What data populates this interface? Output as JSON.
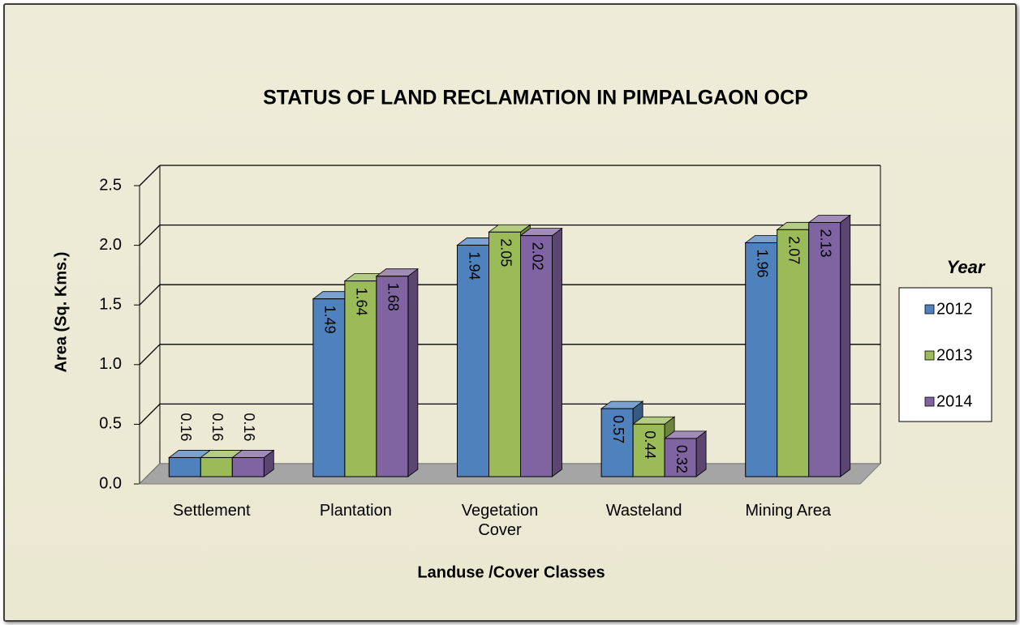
{
  "chart_data": {
    "type": "bar3d",
    "title": "STATUS OF LAND RECLAMATION IN PIMPALGAON OCP",
    "x_label": "Landuse /Cover Classes",
    "y_label": "Area (Sq. Kms.)",
    "categories": [
      "Settlement",
      "Plantation",
      "Vegetation Cover",
      "Wasteland",
      "Mining Area"
    ],
    "series": [
      {
        "name": "2012",
        "color": "#4f81bd",
        "values": [
          0.16,
          1.49,
          1.94,
          0.57,
          1.96
        ]
      },
      {
        "name": "2013",
        "color": "#9bbb59",
        "values": [
          0.16,
          1.64,
          2.05,
          0.44,
          2.07
        ]
      },
      {
        "name": "2014",
        "color": "#8064a2",
        "values": [
          0.16,
          1.68,
          2.02,
          0.32,
          2.13
        ]
      }
    ],
    "ylim": [
      0,
      2.5
    ],
    "yticks": [
      {
        "value": 0,
        "label": "0.0"
      },
      0.5,
      {
        "value": 1,
        "label": "1.0"
      },
      1.5,
      {
        "value": 2,
        "label": "2.0"
      },
      2.5
    ],
    "legend_title": "Year",
    "legend_position": "right",
    "grid": true
  }
}
